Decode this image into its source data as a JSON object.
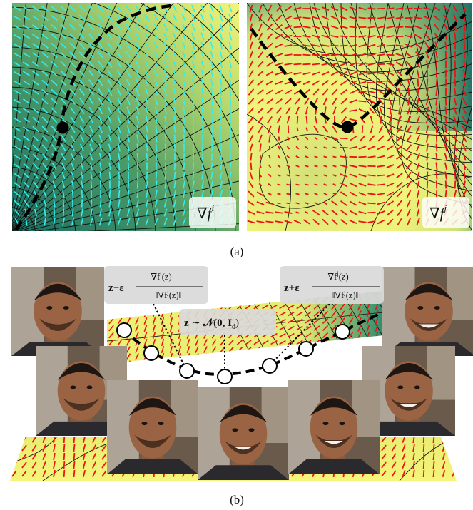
{
  "panel_a": {
    "left_label": "∇f",
    "left_label_sup": "i",
    "right_label": "∇f",
    "right_label_sup": "j",
    "caption": "(a)",
    "colors": {
      "left_arrows": "#2ef0f0",
      "right_arrows": "#ee1111",
      "yellow": "#f2f576",
      "teal": "#1f7a68"
    }
  },
  "panel_b": {
    "formula_minus": {
      "lead": "z−ε",
      "num": "∇f",
      "num_sup": "j",
      "num_tail": "(z)",
      "den": "‖∇f",
      "den_sup": "j",
      "den_tail": "(z)‖"
    },
    "formula_plus": {
      "lead": "z+ε",
      "num": "∇f",
      "num_sup": "j",
      "num_tail": "(z)",
      "den": "‖∇f",
      "den_sup": "j",
      "den_tail": "(z)‖"
    },
    "formula_center": {
      "text": "z ∼ 𝒩(0, I",
      "sub": "d",
      "tail": ")"
    },
    "face_images": [
      "face-top-left",
      "face-mid-left",
      "face-bottom-1",
      "face-bottom-2",
      "face-bottom-3",
      "face-mid-right",
      "face-top-right"
    ],
    "caption": "(b)"
  }
}
